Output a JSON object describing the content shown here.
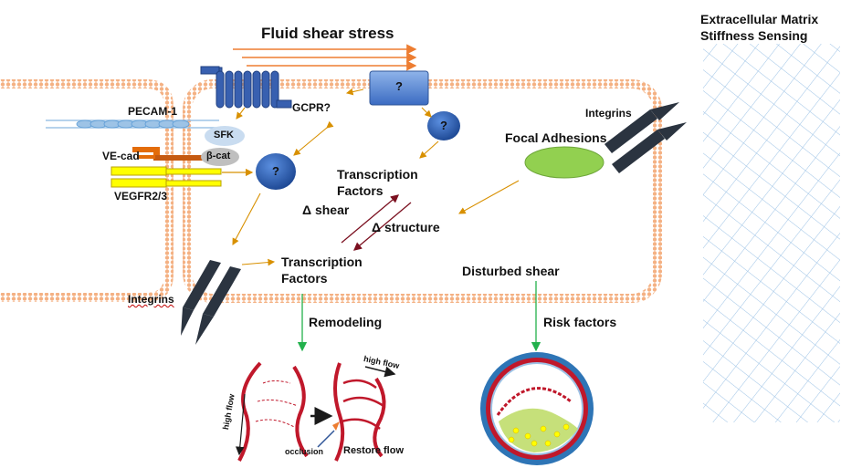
{
  "title": "Fluid shear stress",
  "ecm_label": [
    "Extracellular Matrix",
    "Stiffness Sensing"
  ],
  "labels": {
    "pecam": "PECAM-1",
    "sfk": "SFK",
    "vecad": "VE-cad",
    "bcat": "β-cat",
    "vegfr": "VEGFR2/3",
    "gcpr": "GCPR?",
    "integrins_top": "Integrins",
    "integrins_bottom": "Integrins",
    "focal_adhesions": "Focal Adhesions",
    "tf_center_1": "Transcription",
    "tf_center_2": "Factors",
    "d_shear": "Δ shear",
    "d_structure": "Δ structure",
    "tf_lower_1": "Transcription",
    "tf_lower_2": "Factors",
    "disturbed_shear": "Disturbed shear",
    "remodeling": "Remodeling",
    "risk_factors": "Risk factors",
    "high_flow_left": "high flow",
    "high_flow_right": "high flow",
    "occlusion": "occlusion",
    "restore_flow": "Restore flow",
    "unknown": "?"
  },
  "colors": {
    "membrane": "#f4b183",
    "shear_arrow": "#ed7d31",
    "signal_arrow": "#d89000",
    "dark_arrow": "#7b1020",
    "green_arrow": "#22b14c",
    "blue_node": "#2f5fb3",
    "receptor": "#3860b0",
    "focal": "#92d050",
    "pecam": "#9dc3e6",
    "vegfr": "#ffff00",
    "vecad": "#e36c0a",
    "integrin": "#2b3440",
    "ecm": "#9dc3e6",
    "vessel": "#c0182b"
  }
}
